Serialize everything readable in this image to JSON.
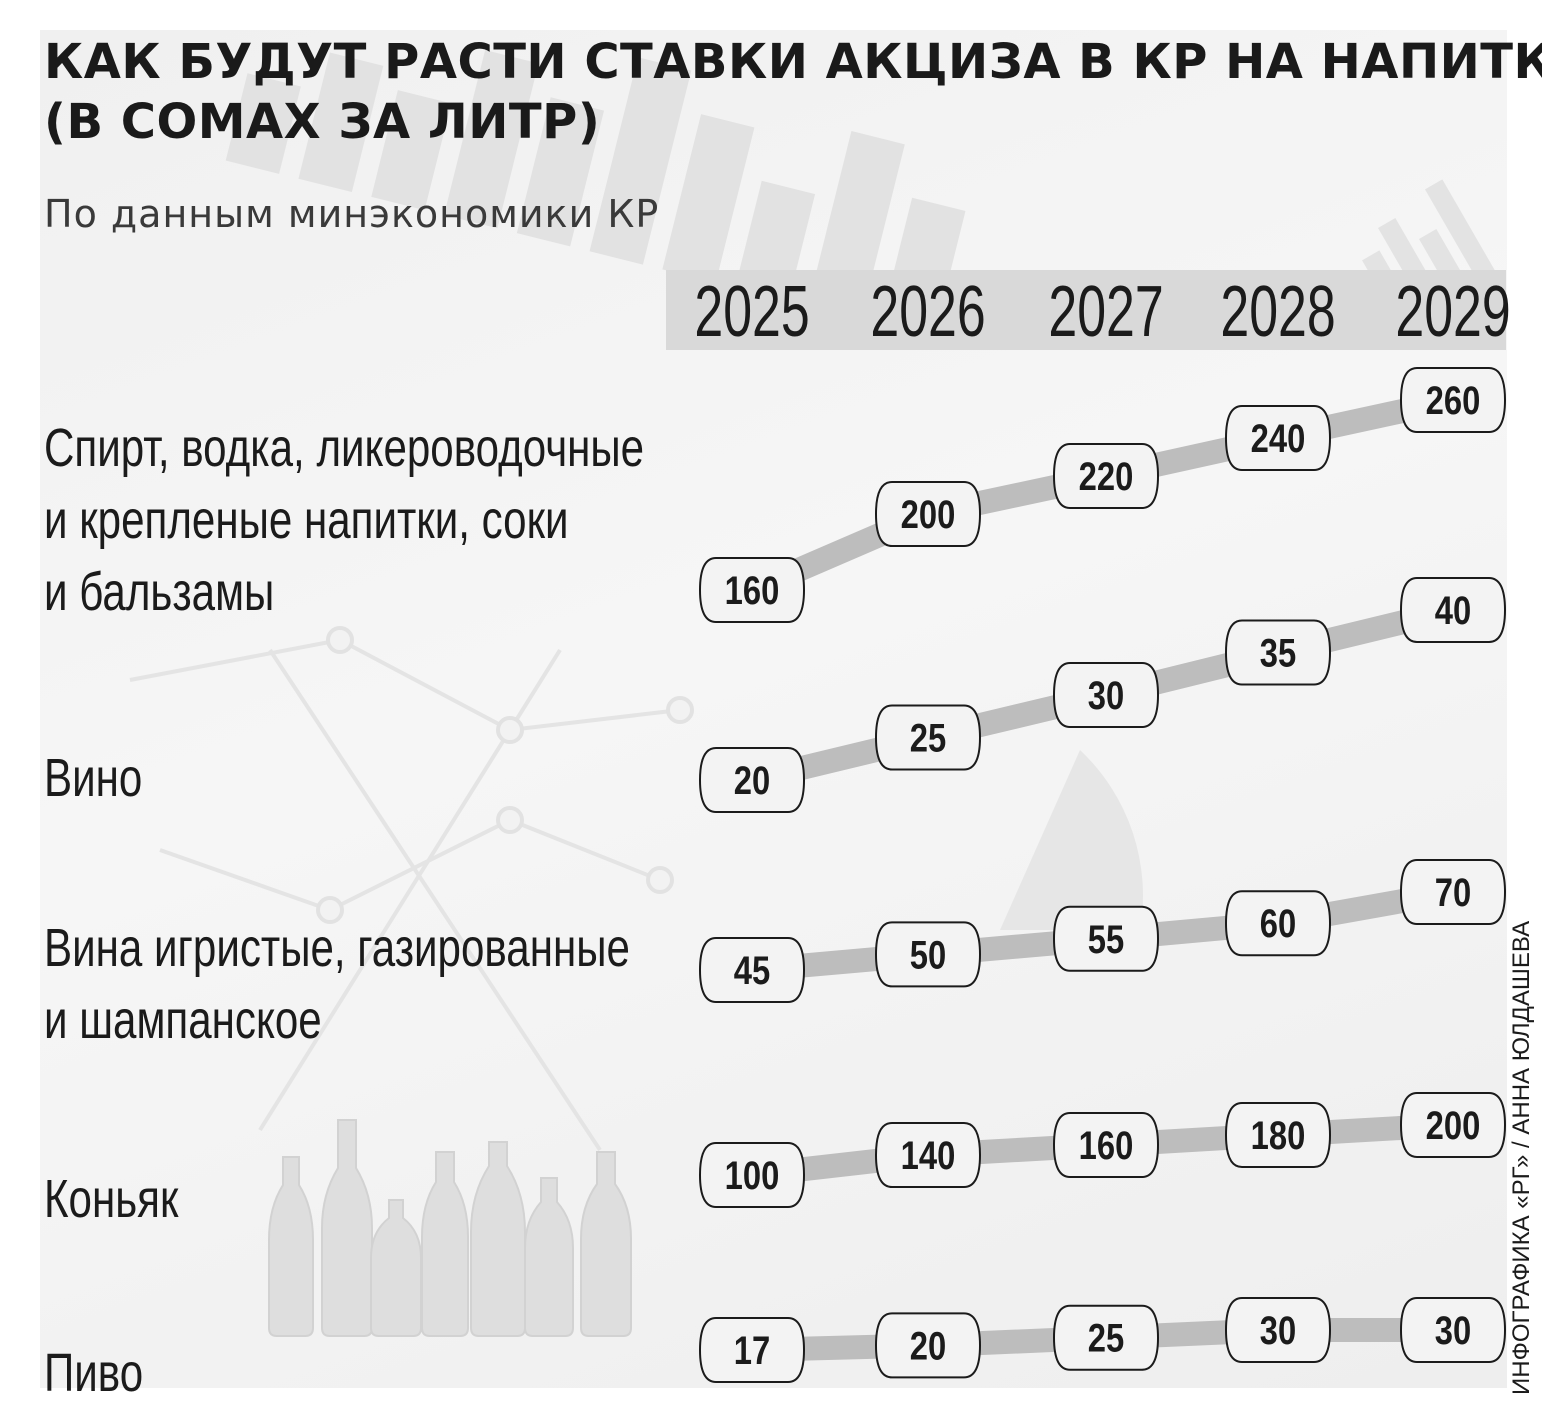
{
  "title_lines": [
    "КАК БУДУТ РАСТИ СТАВКИ АКЦИЗА В КР НА НАПИТКИ",
    "(В СОМАХ ЗА ЛИТР)"
  ],
  "subtitle": "По данным минэкономики КР",
  "credit": "ИНФОГРАФИКА «РГ» / АННА ЮЛДАШЕВА",
  "colors": {
    "panel_bg": "#f2f2f2",
    "year_band": "#d9d9d9",
    "line": "#bdbdbd",
    "label_fill": "#f3f3f3",
    "label_stroke": "#1b1b1b",
    "text": "#1b1b1b"
  },
  "chart_data": {
    "type": "line",
    "x": [
      "2025",
      "2026",
      "2027",
      "2028",
      "2029"
    ],
    "series": [
      {
        "name": "Спирт, водка, ликероводочные и крепленые напитки, соки и бальзамы",
        "name_lines": [
          "Спирт, водка, ликероводочные",
          "и крепленые напитки, соки",
          "и бальзамы"
        ],
        "values": [
          160,
          200,
          220,
          240,
          260
        ]
      },
      {
        "name": "Вино",
        "name_lines": [
          "Вино"
        ],
        "values": [
          20,
          25,
          30,
          35,
          40
        ]
      },
      {
        "name": "Вина игристые, газированные и шампанское",
        "name_lines": [
          "Вина игристые, газированные",
          "и шампанское"
        ],
        "values": [
          45,
          50,
          55,
          60,
          70
        ]
      },
      {
        "name": "Коньяк",
        "name_lines": [
          "Коньяк"
        ],
        "values": [
          100,
          140,
          160,
          180,
          200
        ]
      },
      {
        "name": "Пиво",
        "name_lines": [
          "Пиво"
        ],
        "values": [
          17,
          20,
          25,
          30,
          30
        ]
      }
    ]
  }
}
